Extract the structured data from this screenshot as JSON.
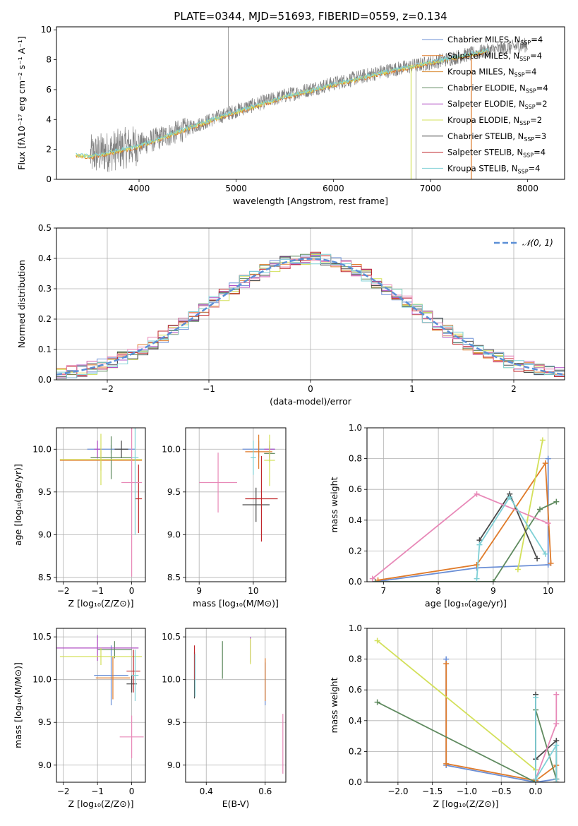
{
  "figure_title": "PLATE=0344, MJD=51693, FIBERID=0559, z=0.134",
  "series_colors": [
    "#6b8fd6",
    "#e07b2a",
    "#5f8a5f",
    "#b04fc4",
    "#d3e05a",
    "#4a4a4a",
    "#c0262b",
    "#e889b8",
    "#7fd0d6"
  ],
  "chart_data": [
    {
      "id": "spectrum",
      "type": "line",
      "xlabel": "wavelength [Angstrom, rest frame]",
      "ylabel": "Flux [fλ10⁻¹⁷ erg cm⁻² s⁻¹ A⁻¹]",
      "xlim": [
        3150,
        8380
      ],
      "ylim": [
        0,
        10.2
      ],
      "xticks": [
        4000,
        5000,
        6000,
        7000,
        8000
      ],
      "yticks": [
        0,
        2,
        4,
        6,
        8,
        10
      ],
      "grid": false,
      "legend": "top-right",
      "legend_entries": [
        "Chabrier MILES, NSSP=4",
        "Salpeter MILES, NSSP=4",
        "Kroupa MILES, NSSP=4",
        "Chabrier ELODIE, NSSP=4",
        "Salpeter ELODIE, NSSP=2",
        "Kroupa ELODIE, NSSP=2",
        "Chabrier STELIB, NSSP=3",
        "Salpeter STELIB, NSSP=4",
        "Kroupa STELIB, NSSP=4"
      ],
      "legend_colors": [
        "#6b8fd6",
        "#e07b2a",
        "#d98a30",
        "#5f8a5f",
        "#b04fc4",
        "#d3e05a",
        "#4a4a4a",
        "#c0262b",
        "#7fd0d6"
      ],
      "observed": {
        "color": "#7f7f7f",
        "x_range": [
          3500,
          8000
        ],
        "continuum": [
          [
            3500,
            1.6
          ],
          [
            4000,
            2.3
          ],
          [
            4500,
            3.4
          ],
          [
            5000,
            4.6
          ],
          [
            5500,
            5.6
          ],
          [
            6000,
            6.4
          ],
          [
            6500,
            7.2
          ],
          [
            7000,
            7.8
          ],
          [
            7500,
            8.5
          ],
          [
            8000,
            9.0
          ]
        ]
      },
      "model": {
        "color": "#7fd0d6",
        "x_range": [
          3350,
          7600
        ],
        "continuum": [
          [
            3350,
            1.6
          ],
          [
            3500,
            1.5
          ],
          [
            4000,
            2.2
          ],
          [
            4500,
            3.4
          ],
          [
            5000,
            4.5
          ],
          [
            5500,
            5.5
          ],
          [
            6000,
            6.3
          ],
          [
            6500,
            7.1
          ],
          [
            7000,
            7.8
          ],
          [
            7600,
            8.6
          ]
        ]
      },
      "cutoffs": [
        {
          "x": 6800,
          "color": "#d3e05a"
        },
        {
          "x": 7420,
          "color": "#e07b2a"
        }
      ]
    },
    {
      "id": "residual-histogram",
      "type": "line",
      "xlabel": "(data-model)/error",
      "ylabel": "Normed distribution",
      "xlim": [
        -2.5,
        2.5
      ],
      "ylim": [
        0,
        0.5
      ],
      "xticks": [
        -2,
        -1,
        0,
        1,
        2
      ],
      "yticks": [
        0.0,
        0.1,
        0.2,
        0.3,
        0.4,
        0.5
      ],
      "grid": true,
      "legend": "top-right",
      "legend_entries": [
        "𝒩(0, 1)"
      ],
      "bin_width": 0.1,
      "series": [
        {
          "name": "N(0,1)",
          "type": "gaussian",
          "mu": 0,
          "sigma": 1,
          "color": "#5b8fd6"
        }
      ],
      "histogram_noise": 0.022
    },
    {
      "id": "age-vs-Z",
      "type": "scatter",
      "xlabel": "Z [log₁₀(Z/Z⊙)]",
      "ylabel": "age  [log₁₀(age/yr)]",
      "xlim": [
        -2.2,
        0.4
      ],
      "ylim": [
        8.45,
        10.25
      ],
      "xticks": [
        -2,
        -1,
        0
      ],
      "yticks": [
        8.5,
        9.0,
        9.5,
        10.0
      ],
      "grid": true,
      "points": [
        {
          "x": -0.6,
          "y": 10.0,
          "xerr": 0.7,
          "yerr": 0.05,
          "color": "#6b8fd6"
        },
        {
          "x": -0.9,
          "y": 9.87,
          "xerr": 1.2,
          "yerr": 0.12,
          "color": "#e07b2a"
        },
        {
          "x": -0.6,
          "y": 9.9,
          "xerr": 0.6,
          "yerr": 0.25,
          "color": "#5f8a5f"
        },
        {
          "x": -1.0,
          "y": 10.0,
          "xerr": 0.1,
          "yerr": 0.1,
          "color": "#b04fc4"
        },
        {
          "x": -0.9,
          "y": 9.88,
          "xerr": 1.2,
          "yerr": 0.3,
          "color": "#d3e05a"
        },
        {
          "x": -0.3,
          "y": 10.0,
          "xerr": 0.2,
          "yerr": 0.1,
          "color": "#4a4a4a"
        },
        {
          "x": 0.2,
          "y": 9.42,
          "xerr": 0.1,
          "yerr": 0.4,
          "color": "#c0262b"
        },
        {
          "x": 0.0,
          "y": 9.61,
          "xerr": 0.3,
          "yerr": 1.1,
          "color": "#e889b8"
        },
        {
          "x": 0.1,
          "y": 9.9,
          "xerr": 0.1,
          "yerr": 0.9,
          "color": "#7fd0d6"
        }
      ]
    },
    {
      "id": "age-vs-mass",
      "type": "scatter",
      "xlabel": "mass [log₁₀(M/M⊙)]",
      "ylabel": "",
      "xlim": [
        8.75,
        10.6
      ],
      "ylim": [
        8.45,
        10.25
      ],
      "xticks": [
        9,
        10
      ],
      "yticks": [
        8.5,
        9.0,
        9.5,
        10.0
      ],
      "grid": true,
      "points": [
        {
          "x": 10.1,
          "y": 10.0,
          "xerr": 0.3,
          "yerr": 0.1,
          "color": "#6b8fd6"
        },
        {
          "x": 10.1,
          "y": 9.97,
          "xerr": 0.25,
          "yerr": 0.2,
          "color": "#e07b2a"
        },
        {
          "x": 10.3,
          "y": 9.95,
          "xerr": 0.1,
          "yerr": 0.1,
          "color": "#5f8a5f"
        },
        {
          "x": 10.3,
          "y": 10.0,
          "xerr": 0.1,
          "yerr": 0.1,
          "color": "#b04fc4"
        },
        {
          "x": 10.3,
          "y": 9.87,
          "xerr": 0.1,
          "yerr": 0.3,
          "color": "#d3e05a"
        },
        {
          "x": 10.05,
          "y": 9.35,
          "xerr": 0.25,
          "yerr": 0.2,
          "color": "#4a4a4a"
        },
        {
          "x": 10.15,
          "y": 9.42,
          "xerr": 0.3,
          "yerr": 0.5,
          "color": "#c0262b"
        },
        {
          "x": 9.35,
          "y": 9.61,
          "xerr": 0.35,
          "yerr": 0.35,
          "color": "#e889b8"
        },
        {
          "x": 10.0,
          "y": 9.9,
          "xerr": 0.05,
          "yerr": 0.2,
          "color": "#7fd0d6"
        }
      ]
    },
    {
      "id": "mass-weight-vs-age",
      "type": "line",
      "xlabel": "age  [log₁₀(age/yr)]",
      "ylabel": "mass weight",
      "xlim": [
        6.7,
        10.3
      ],
      "ylim": [
        0,
        1
      ],
      "xticks": [
        7,
        8,
        9,
        10
      ],
      "yticks": [
        0.0,
        0.2,
        0.4,
        0.6,
        0.8,
        1.0
      ],
      "grid": true,
      "series": [
        {
          "color": "#6b8fd6",
          "x": [
            6.85,
            8.7,
            10.0,
            10.0
          ],
          "y": [
            0.0,
            0.09,
            0.11,
            0.8
          ]
        },
        {
          "color": "#e07b2a",
          "x": [
            6.9,
            8.7,
            9.95,
            10.05
          ],
          "y": [
            0.01,
            0.11,
            0.77,
            0.12
          ]
        },
        {
          "color": "#5f8a5f",
          "x": [
            6.85,
            9.0,
            9.85,
            10.15
          ],
          "y": [
            0.0,
            0.0,
            0.47,
            0.52
          ]
        },
        {
          "color": "#d3e05a",
          "x": [
            9.45,
            9.9
          ],
          "y": [
            0.08,
            0.92
          ]
        },
        {
          "color": "#4a4a4a",
          "x": [
            8.75,
            9.3,
            9.8
          ],
          "y": [
            0.27,
            0.57,
            0.15
          ]
        },
        {
          "color": "#e889b8",
          "x": [
            6.8,
            8.7,
            10.0
          ],
          "y": [
            0.02,
            0.57,
            0.38
          ]
        },
        {
          "color": "#7fd0d6",
          "x": [
            8.7,
            8.75,
            9.3,
            9.95
          ],
          "y": [
            0.02,
            0.24,
            0.55,
            0.18
          ]
        }
      ]
    },
    {
      "id": "mass-vs-Z",
      "type": "scatter",
      "xlabel": "Z [log₁₀(Z/Z⊙)]",
      "ylabel": "mass [log₁₀(M/M⊙)]",
      "xlim": [
        -2.2,
        0.4
      ],
      "ylim": [
        8.8,
        10.6
      ],
      "xticks": [
        -2,
        -1,
        0
      ],
      "yticks": [
        9.0,
        9.5,
        10.0,
        10.5
      ],
      "grid": true,
      "points": [
        {
          "x": -0.6,
          "y": 10.05,
          "xerr": 0.5,
          "yerr": 0.35,
          "color": "#6b8fd6"
        },
        {
          "x": -0.55,
          "y": 10.02,
          "xerr": 0.5,
          "yerr": 0.25,
          "color": "#e07b2a"
        },
        {
          "x": -0.5,
          "y": 10.35,
          "xerr": 0.5,
          "yerr": 0.1,
          "color": "#5f8a5f"
        },
        {
          "x": -1.0,
          "y": 10.37,
          "xerr": 1.2,
          "yerr": 0.15,
          "color": "#b04fc4"
        },
        {
          "x": -0.9,
          "y": 10.27,
          "xerr": 1.2,
          "yerr": 0.1,
          "color": "#d3e05a"
        },
        {
          "x": 0.0,
          "y": 9.95,
          "xerr": 0.15,
          "yerr": 0.1,
          "color": "#4a4a4a"
        },
        {
          "x": 0.05,
          "y": 10.1,
          "xerr": 0.2,
          "yerr": 0.25,
          "color": "#c0262b"
        },
        {
          "x": 0.0,
          "y": 9.33,
          "xerr": 0.35,
          "yerr": 0.25,
          "color": "#e889b8"
        },
        {
          "x": 0.1,
          "y": 10.05,
          "xerr": 0.1,
          "yerr": 0.3,
          "color": "#7fd0d6"
        }
      ]
    },
    {
      "id": "mass-vs-EBV",
      "type": "scatter",
      "xlabel": "E(B-V)",
      "ylabel": "",
      "xlim": [
        0.33,
        0.67
      ],
      "ylim": [
        8.8,
        10.6
      ],
      "xticks": [
        0.4,
        0.6
      ],
      "yticks": [
        9.0,
        9.5,
        10.0,
        10.5
      ],
      "grid": true,
      "points": [
        {
          "x": 0.6,
          "y": 9.95,
          "xerr": 0.0,
          "yerr": 0.25,
          "color": "#6b8fd6"
        },
        {
          "x": 0.6,
          "y": 10.0,
          "xerr": 0.0,
          "yerr": 0.25,
          "color": "#e07b2a"
        },
        {
          "x": 0.455,
          "y": 10.23,
          "xerr": 0.0,
          "yerr": 0.22,
          "color": "#5f8a5f"
        },
        {
          "x": 0.55,
          "y": 10.35,
          "xerr": 0.0,
          "yerr": 0.15,
          "color": "#b04fc4"
        },
        {
          "x": 0.55,
          "y": 10.33,
          "xerr": 0.0,
          "yerr": 0.15,
          "color": "#d3e05a"
        },
        {
          "x": 0.36,
          "y": 10.05,
          "xerr": 0.0,
          "yerr": 0.27,
          "color": "#4a4a4a"
        },
        {
          "x": 0.36,
          "y": 10.2,
          "xerr": 0.0,
          "yerr": 0.2,
          "color": "#c0262b"
        },
        {
          "x": 0.66,
          "y": 9.25,
          "xerr": 0.0,
          "yerr": 0.35,
          "color": "#e889b8"
        },
        {
          "x": 0.362,
          "y": 10.05,
          "xerr": 0.0,
          "yerr": 0.25,
          "color": "#7fd0d6"
        }
      ]
    },
    {
      "id": "mass-weight-vs-Z",
      "type": "line",
      "xlabel": "Z [log₁₀(Z/Z⊙)]",
      "ylabel": "mass weight",
      "xlim": [
        -2.45,
        0.42
      ],
      "ylim": [
        0,
        1
      ],
      "xticks": [
        -2.0,
        -1.5,
        -1.0,
        -0.5,
        0.0
      ],
      "ytick_values": [
        0.0,
        0.2,
        0.4,
        0.6,
        0.8,
        1.0
      ],
      "grid": true,
      "series": [
        {
          "color": "#6b8fd6",
          "x": [
            -1.3,
            -1.3,
            0.0,
            0.3
          ],
          "y": [
            0.8,
            0.11,
            0.0,
            0.02
          ]
        },
        {
          "color": "#e07b2a",
          "x": [
            -1.3,
            -1.3,
            0.0,
            0.3,
            0.3
          ],
          "y": [
            0.77,
            0.12,
            0.01,
            0.11,
            0.02
          ]
        },
        {
          "color": "#5f8a5f",
          "x": [
            -2.3,
            0.0,
            0.0,
            0.3
          ],
          "y": [
            0.52,
            0.0,
            0.47,
            0.02
          ]
        },
        {
          "color": "#d3e05a",
          "x": [
            -2.3,
            0.0
          ],
          "y": [
            0.92,
            0.08
          ]
        },
        {
          "color": "#4a4a4a",
          "x": [
            0.0,
            0.0,
            0.3,
            0.3
          ],
          "y": [
            0.57,
            0.15,
            0.27,
            0.0
          ]
        },
        {
          "color": "#e889b8",
          "x": [
            0.3,
            0.3,
            0.0
          ],
          "y": [
            0.57,
            0.38,
            0.02
          ]
        },
        {
          "color": "#7fd0d6",
          "x": [
            0.0,
            0.0,
            0.3,
            0.3
          ],
          "y": [
            0.55,
            0.02,
            0.24,
            0.02
          ]
        }
      ]
    }
  ]
}
